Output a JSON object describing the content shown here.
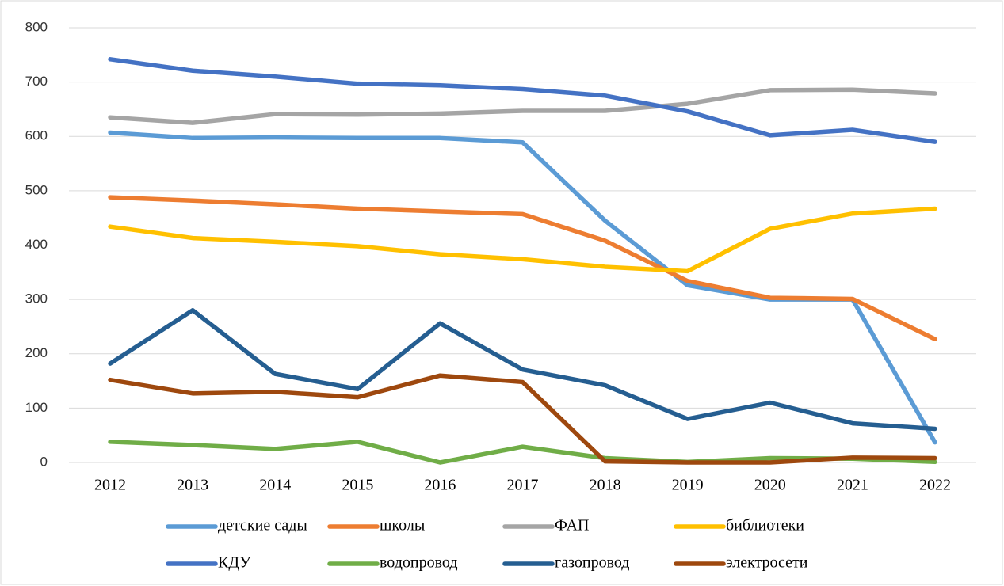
{
  "chart_data": {
    "type": "line",
    "categories": [
      "2012",
      "2013",
      "2014",
      "2015",
      "2016",
      "2017",
      "2018",
      "2019",
      "2020",
      "2021",
      "2022"
    ],
    "series": [
      {
        "name": "детские сады",
        "color": "#5b9bd5",
        "values": [
          607,
          597,
          598,
          597,
          597,
          589,
          445,
          326,
          300,
          300,
          37
        ]
      },
      {
        "name": "школы",
        "color": "#ed7d31",
        "values": [
          488,
          482,
          475,
          467,
          462,
          457,
          408,
          334,
          303,
          301,
          227
        ]
      },
      {
        "name": "ФАП",
        "color": "#a5a5a5",
        "values": [
          635,
          625,
          641,
          640,
          642,
          647,
          647,
          660,
          685,
          686,
          679
        ]
      },
      {
        "name": "библиотеки",
        "color": "#ffc000",
        "values": [
          434,
          413,
          406,
          398,
          383,
          374,
          360,
          352,
          430,
          458,
          467
        ]
      },
      {
        "name": "КДУ",
        "color": "#4472c4",
        "values": [
          742,
          721,
          710,
          697,
          694,
          687,
          675,
          646,
          602,
          612,
          590
        ]
      },
      {
        "name": "водопровод",
        "color": "#70ad47",
        "values": [
          38,
          32,
          25,
          38,
          0,
          29,
          8,
          1,
          8,
          7,
          1
        ]
      },
      {
        "name": "газопровод",
        "color": "#255e91",
        "values": [
          182,
          280,
          163,
          135,
          256,
          171,
          142,
          80,
          110,
          72,
          62
        ]
      },
      {
        "name": "электросети",
        "color": "#9e480e",
        "values": [
          152,
          127,
          130,
          120,
          160,
          148,
          2,
          0,
          0,
          9,
          8
        ]
      }
    ],
    "ylim": [
      0,
      800
    ],
    "yticks": [
      0,
      100,
      200,
      300,
      400,
      500,
      600,
      700,
      800
    ],
    "grid": true,
    "legend": "bottom"
  }
}
